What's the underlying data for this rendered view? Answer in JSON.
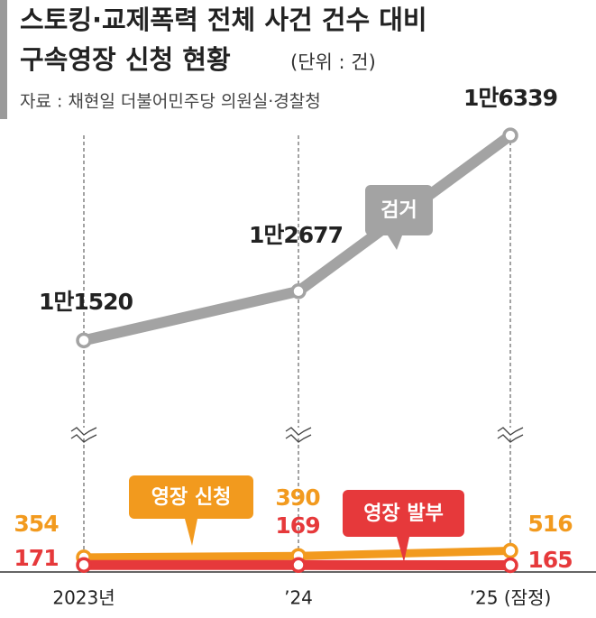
{
  "chart_data": {
    "type": "line",
    "title_lines": [
      "스토킹·교제폭력 전체 사건 건수 대비",
      "구속영장 신청 현황"
    ],
    "unit": "(단위 : 건)",
    "source": "자료 : 채현일 더불어민주당 의원실·경찰청",
    "categories": [
      "2023년",
      "’24",
      "’25 (잠정)"
    ],
    "ylim": [
      0,
      3600
    ],
    "y2lim": [
      10000,
      17000
    ],
    "series": [
      {
        "name": "검거",
        "color": "#a3a3a3",
        "axis": "y2",
        "values": [
          11520,
          12677,
          16339
        ],
        "value_labels": [
          "1만1520",
          "1만2677",
          "1만6339"
        ]
      },
      {
        "name": "영장 신청",
        "color": "#f29a1e",
        "values": [
          354,
          390,
          516
        ]
      },
      {
        "name": "영장 발부",
        "color": "#e6393b",
        "values": [
          171,
          169,
          165
        ]
      }
    ]
  }
}
